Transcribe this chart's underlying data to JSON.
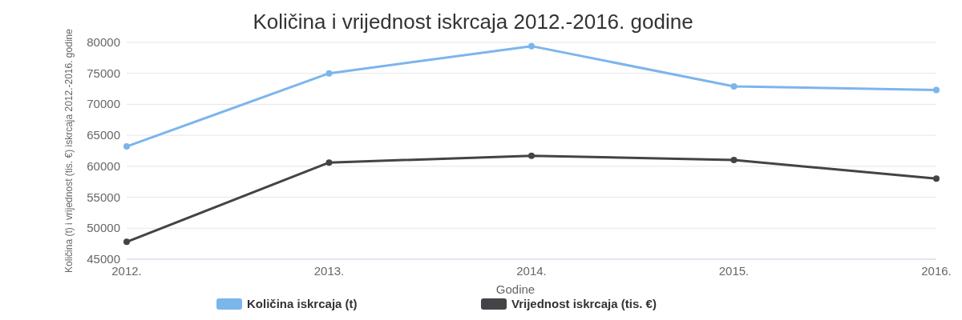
{
  "chart_data": {
    "type": "line",
    "title": "Količina i vrijednost iskrcaja 2012.-2016. godine",
    "xlabel": "Godine",
    "ylabel": "Količina (t) i vrijednost (tis. €) iskrcaja 2012.-2016. godine",
    "categories": [
      "2012.",
      "2013.",
      "2014.",
      "2015.",
      "2016."
    ],
    "series": [
      {
        "name": "Količina iskrcaja (t)",
        "color": "#7cb5ec",
        "values": [
          63200,
          75000,
          79400,
          72900,
          72300
        ]
      },
      {
        "name": "Vrijednost iskrcaja (tis. €)",
        "color": "#434348",
        "values": [
          47800,
          60600,
          61700,
          61000,
          58000
        ]
      }
    ],
    "ylim": [
      45000,
      80000
    ],
    "yticks": [
      45000,
      50000,
      55000,
      60000,
      65000,
      70000,
      75000,
      80000
    ],
    "grid": "y",
    "legend": "bottom",
    "marker": "circle",
    "line_style": "solid"
  }
}
